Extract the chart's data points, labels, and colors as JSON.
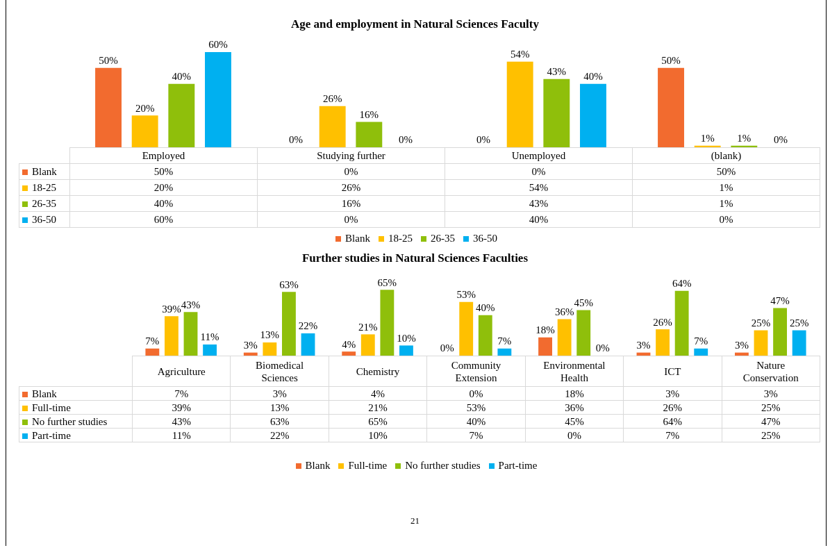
{
  "chart_data": [
    {
      "type": "bar",
      "title": "Age and employment in Natural Sciences Faculty",
      "categories": [
        "Employed",
        "Studying further",
        "Unemployed",
        "(blank)"
      ],
      "legend": "bottom",
      "series": [
        {
          "name": "Blank",
          "color": "#f26b2f",
          "values": [
            50,
            0,
            0,
            50
          ],
          "value_labels": [
            "50%",
            "0%",
            "0%",
            "50%"
          ]
        },
        {
          "name": "18-25",
          "color": "#ffc000",
          "values": [
            20,
            26,
            54,
            1
          ],
          "value_labels": [
            "20%",
            "26%",
            "54%",
            "1%"
          ]
        },
        {
          "name": "26-35",
          "color": "#8fbf0b",
          "values": [
            40,
            16,
            43,
            1
          ],
          "value_labels": [
            "40%",
            "16%",
            "43%",
            "1%"
          ]
        },
        {
          "name": "36-50",
          "color": "#00b0f0",
          "values": [
            60,
            0,
            40,
            0
          ],
          "value_labels": [
            "60%",
            "0%",
            "40%",
            "0%"
          ]
        }
      ]
    },
    {
      "type": "bar",
      "title": "Further studies in Natural Sciences Faculties",
      "categories": [
        "Agriculture",
        "Biomedical Sciences",
        "Chemistry",
        "Community Extension",
        "Environmental Health",
        "ICT",
        "Nature Conservation"
      ],
      "legend": "bottom",
      "annotations": [
        "21"
      ],
      "series": [
        {
          "name": "Blank",
          "color": "#f26b2f",
          "values": [
            7,
            3,
            4,
            0,
            18,
            3,
            3
          ],
          "value_labels": [
            "7%",
            "3%",
            "4%",
            "0%",
            "18%",
            "3%",
            "3%"
          ]
        },
        {
          "name": "Full-time",
          "color": "#ffc000",
          "values": [
            39,
            13,
            21,
            53,
            36,
            26,
            25
          ],
          "value_labels": [
            "39%",
            "13%",
            "21%",
            "53%",
            "36%",
            "26%",
            "25%"
          ]
        },
        {
          "name": "No further studies",
          "color": "#8fbf0b",
          "values": [
            43,
            63,
            65,
            40,
            45,
            64,
            47
          ],
          "value_labels": [
            "43%",
            "63%",
            "65%",
            "40%",
            "45%",
            "64%",
            "47%"
          ]
        },
        {
          "name": "Part-time",
          "color": "#00b0f0",
          "values": [
            11,
            22,
            10,
            7,
            0,
            7,
            25
          ],
          "value_labels": [
            "11%",
            "22%",
            "10%",
            "7%",
            "0%",
            "7%",
            "25%"
          ]
        }
      ]
    }
  ]
}
